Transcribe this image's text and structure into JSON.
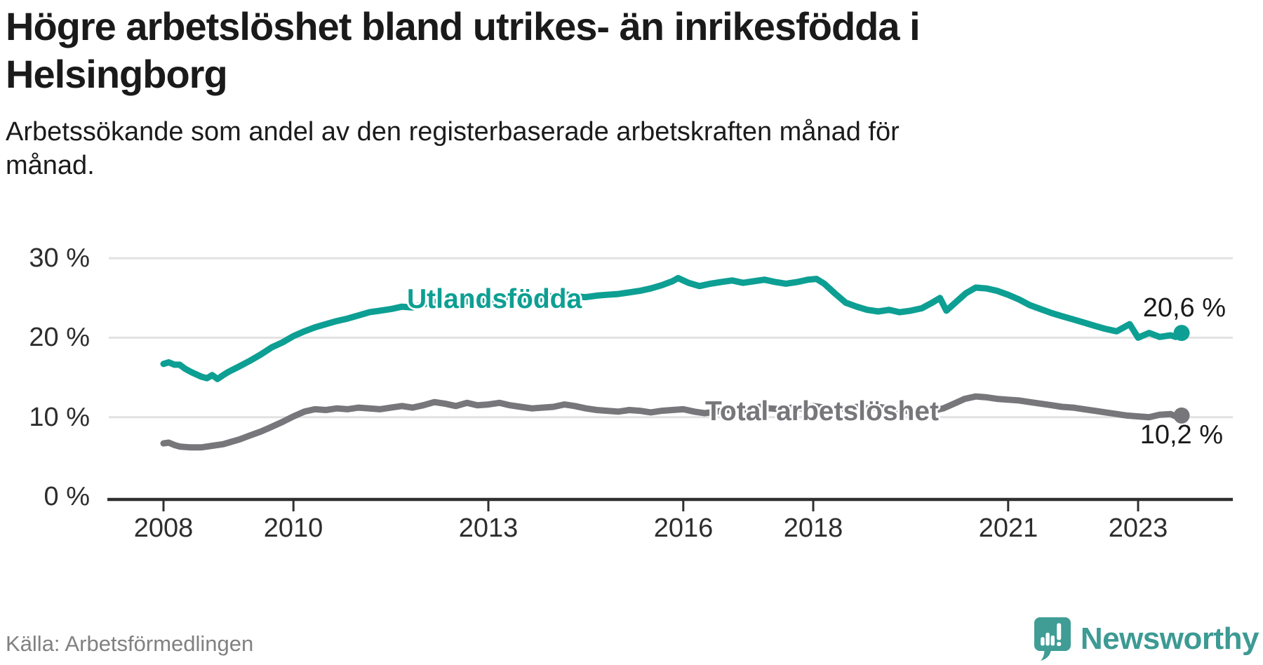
{
  "header": {
    "title_lines": [
      "Högre arbetslöshet bland utrikes- än inrikesfödda i",
      "Helsingborg"
    ],
    "subtitle_lines": [
      "Arbetssökande som andel av den registerbaserade arbetskraften månad för",
      "månad."
    ]
  },
  "footer": {
    "source_label": "Källa: Arbetsförmedlingen",
    "brand_name": "Newsworthy"
  },
  "colors": {
    "teal_line": "#0d9f93",
    "gray_line": "#76767b",
    "axis": "#2f2f2f",
    "grid": "#e2e2e2",
    "text_dark": "#1a1a1a",
    "brand_teal": "#3d9a94"
  },
  "chart_data": {
    "type": "line",
    "title": "Högre arbetslöshet bland utrikes- än inrikesfödda i Helsingborg",
    "subtitle": "Arbetssökande som andel av den registerbaserade arbetskraften månad för månad.",
    "source": "Källa: Arbetsförmedlingen",
    "grid": true,
    "legend_position": "inline-labels",
    "ylim": [
      0,
      32
    ],
    "xlim": [
      2007.8,
      2024.1
    ],
    "y_axis": {
      "ticks": [
        {
          "value": 30,
          "label": "30 %"
        },
        {
          "value": 20,
          "label": "20 %"
        },
        {
          "value": 10,
          "label": "10 %"
        },
        {
          "value": 0,
          "label": "0 %"
        }
      ]
    },
    "x_axis": {
      "ticks": [
        {
          "year": 2008,
          "label": "2008"
        },
        {
          "year": 2010,
          "label": "2010"
        },
        {
          "year": 2013,
          "label": "2013"
        },
        {
          "year": 2016,
          "label": "2016"
        },
        {
          "year": 2018,
          "label": "2018"
        },
        {
          "year": 2021,
          "label": "2021"
        },
        {
          "year": 2023,
          "label": "2023"
        }
      ]
    },
    "series": [
      {
        "name": "Utlandsfödda",
        "color": "#0d9f93",
        "end_value": 20.6,
        "end_label": "20,6 %",
        "points": [
          [
            2008.0,
            16.7
          ],
          [
            2008.08,
            16.9
          ],
          [
            2008.17,
            16.6
          ],
          [
            2008.25,
            16.6
          ],
          [
            2008.33,
            16.1
          ],
          [
            2008.42,
            15.7
          ],
          [
            2008.5,
            15.4
          ],
          [
            2008.58,
            15.1
          ],
          [
            2008.67,
            14.9
          ],
          [
            2008.75,
            15.3
          ],
          [
            2008.83,
            14.8
          ],
          [
            2008.92,
            15.3
          ],
          [
            2009.0,
            15.7
          ],
          [
            2009.17,
            16.4
          ],
          [
            2009.33,
            17.1
          ],
          [
            2009.5,
            17.9
          ],
          [
            2009.67,
            18.8
          ],
          [
            2009.83,
            19.4
          ],
          [
            2010.0,
            20.2
          ],
          [
            2010.17,
            20.8
          ],
          [
            2010.33,
            21.3
          ],
          [
            2010.5,
            21.7
          ],
          [
            2010.67,
            22.1
          ],
          [
            2010.83,
            22.4
          ],
          [
            2011.0,
            22.8
          ],
          [
            2011.17,
            23.2
          ],
          [
            2011.33,
            23.4
          ],
          [
            2011.5,
            23.6
          ],
          [
            2011.67,
            23.9
          ],
          [
            2011.83,
            23.8
          ],
          [
            2012.0,
            24.2
          ],
          [
            2012.17,
            24.5
          ],
          [
            2012.33,
            24.2
          ],
          [
            2012.5,
            24.1
          ],
          [
            2012.67,
            24.6
          ],
          [
            2012.83,
            24.4
          ],
          [
            2013.0,
            24.7
          ],
          [
            2013.17,
            25.0
          ],
          [
            2013.33,
            25.2
          ],
          [
            2013.5,
            24.9
          ],
          [
            2013.67,
            24.7
          ],
          [
            2013.83,
            24.9
          ],
          [
            2014.0,
            25.3
          ],
          [
            2014.17,
            25.5
          ],
          [
            2014.33,
            25.2
          ],
          [
            2014.5,
            25.1
          ],
          [
            2014.67,
            25.3
          ],
          [
            2014.83,
            25.4
          ],
          [
            2015.0,
            25.5
          ],
          [
            2015.17,
            25.7
          ],
          [
            2015.33,
            25.9
          ],
          [
            2015.5,
            26.2
          ],
          [
            2015.67,
            26.6
          ],
          [
            2015.83,
            27.1
          ],
          [
            2015.92,
            27.5
          ],
          [
            2016.08,
            26.9
          ],
          [
            2016.25,
            26.5
          ],
          [
            2016.42,
            26.8
          ],
          [
            2016.58,
            27.0
          ],
          [
            2016.75,
            27.2
          ],
          [
            2016.92,
            26.9
          ],
          [
            2017.08,
            27.1
          ],
          [
            2017.25,
            27.3
          ],
          [
            2017.42,
            27.0
          ],
          [
            2017.58,
            26.8
          ],
          [
            2017.75,
            27.0
          ],
          [
            2017.92,
            27.3
          ],
          [
            2018.05,
            27.4
          ],
          [
            2018.17,
            26.8
          ],
          [
            2018.33,
            25.6
          ],
          [
            2018.5,
            24.4
          ],
          [
            2018.67,
            23.9
          ],
          [
            2018.83,
            23.5
          ],
          [
            2019.0,
            23.3
          ],
          [
            2019.17,
            23.5
          ],
          [
            2019.33,
            23.2
          ],
          [
            2019.5,
            23.4
          ],
          [
            2019.67,
            23.7
          ],
          [
            2019.83,
            24.4
          ],
          [
            2019.95,
            25.0
          ],
          [
            2020.05,
            23.4
          ],
          [
            2020.2,
            24.5
          ],
          [
            2020.35,
            25.6
          ],
          [
            2020.5,
            26.3
          ],
          [
            2020.67,
            26.2
          ],
          [
            2020.83,
            25.9
          ],
          [
            2021.0,
            25.4
          ],
          [
            2021.17,
            24.8
          ],
          [
            2021.33,
            24.1
          ],
          [
            2021.5,
            23.6
          ],
          [
            2021.67,
            23.1
          ],
          [
            2021.83,
            22.7
          ],
          [
            2022.0,
            22.3
          ],
          [
            2022.17,
            21.9
          ],
          [
            2022.33,
            21.5
          ],
          [
            2022.5,
            21.1
          ],
          [
            2022.67,
            20.8
          ],
          [
            2022.87,
            21.7
          ],
          [
            2023.0,
            20.0
          ],
          [
            2023.17,
            20.6
          ],
          [
            2023.33,
            20.1
          ],
          [
            2023.5,
            20.3
          ],
          [
            2023.58,
            20.1
          ],
          [
            2023.67,
            20.6
          ]
        ]
      },
      {
        "name": "Total arbetslöshet",
        "color": "#76767b",
        "end_value": 10.2,
        "end_label": "10,2 %",
        "points": [
          [
            2008.0,
            6.7
          ],
          [
            2008.08,
            6.8
          ],
          [
            2008.17,
            6.5
          ],
          [
            2008.25,
            6.3
          ],
          [
            2008.42,
            6.2
          ],
          [
            2008.58,
            6.2
          ],
          [
            2008.75,
            6.4
          ],
          [
            2008.92,
            6.6
          ],
          [
            2009.0,
            6.8
          ],
          [
            2009.17,
            7.2
          ],
          [
            2009.33,
            7.7
          ],
          [
            2009.5,
            8.2
          ],
          [
            2009.67,
            8.8
          ],
          [
            2009.83,
            9.4
          ],
          [
            2010.0,
            10.1
          ],
          [
            2010.17,
            10.7
          ],
          [
            2010.33,
            11.0
          ],
          [
            2010.5,
            10.9
          ],
          [
            2010.67,
            11.1
          ],
          [
            2010.83,
            11.0
          ],
          [
            2011.0,
            11.2
          ],
          [
            2011.17,
            11.1
          ],
          [
            2011.33,
            11.0
          ],
          [
            2011.5,
            11.2
          ],
          [
            2011.67,
            11.4
          ],
          [
            2011.83,
            11.2
          ],
          [
            2012.0,
            11.5
          ],
          [
            2012.17,
            11.9
          ],
          [
            2012.33,
            11.7
          ],
          [
            2012.5,
            11.4
          ],
          [
            2012.67,
            11.8
          ],
          [
            2012.83,
            11.5
          ],
          [
            2013.0,
            11.6
          ],
          [
            2013.17,
            11.8
          ],
          [
            2013.33,
            11.5
          ],
          [
            2013.5,
            11.3
          ],
          [
            2013.67,
            11.1
          ],
          [
            2013.83,
            11.2
          ],
          [
            2014.0,
            11.3
          ],
          [
            2014.17,
            11.6
          ],
          [
            2014.33,
            11.4
          ],
          [
            2014.5,
            11.1
          ],
          [
            2014.67,
            10.9
          ],
          [
            2014.83,
            10.8
          ],
          [
            2015.0,
            10.7
          ],
          [
            2015.17,
            10.9
          ],
          [
            2015.33,
            10.8
          ],
          [
            2015.5,
            10.6
          ],
          [
            2015.67,
            10.8
          ],
          [
            2015.83,
            10.9
          ],
          [
            2016.0,
            11.0
          ],
          [
            2016.17,
            10.7
          ],
          [
            2016.33,
            10.5
          ],
          [
            2016.5,
            10.7
          ],
          [
            2016.67,
            10.9
          ],
          [
            2016.83,
            10.8
          ],
          [
            2017.0,
            11.0
          ],
          [
            2017.17,
            11.3
          ],
          [
            2017.33,
            11.1
          ],
          [
            2017.5,
            11.0
          ],
          [
            2017.67,
            11.2
          ],
          [
            2017.83,
            11.1
          ],
          [
            2018.0,
            11.4
          ],
          [
            2018.17,
            11.2
          ],
          [
            2018.33,
            11.0
          ],
          [
            2018.5,
            11.1
          ],
          [
            2018.67,
            11.3
          ],
          [
            2018.83,
            11.1
          ],
          [
            2019.0,
            11.3
          ],
          [
            2019.17,
            11.1
          ],
          [
            2019.33,
            10.9
          ],
          [
            2019.5,
            10.7
          ],
          [
            2019.67,
            10.5
          ],
          [
            2019.83,
            10.8
          ],
          [
            2020.0,
            11.1
          ],
          [
            2020.17,
            11.7
          ],
          [
            2020.33,
            12.3
          ],
          [
            2020.5,
            12.6
          ],
          [
            2020.67,
            12.5
          ],
          [
            2020.83,
            12.3
          ],
          [
            2021.0,
            12.2
          ],
          [
            2021.17,
            12.1
          ],
          [
            2021.33,
            11.9
          ],
          [
            2021.5,
            11.7
          ],
          [
            2021.67,
            11.5
          ],
          [
            2021.83,
            11.3
          ],
          [
            2022.0,
            11.2
          ],
          [
            2022.17,
            11.0
          ],
          [
            2022.33,
            10.8
          ],
          [
            2022.5,
            10.6
          ],
          [
            2022.67,
            10.4
          ],
          [
            2022.83,
            10.2
          ],
          [
            2023.0,
            10.1
          ],
          [
            2023.17,
            10.0
          ],
          [
            2023.33,
            10.3
          ],
          [
            2023.5,
            10.4
          ],
          [
            2023.58,
            10.1
          ],
          [
            2023.67,
            10.2
          ]
        ]
      }
    ]
  }
}
